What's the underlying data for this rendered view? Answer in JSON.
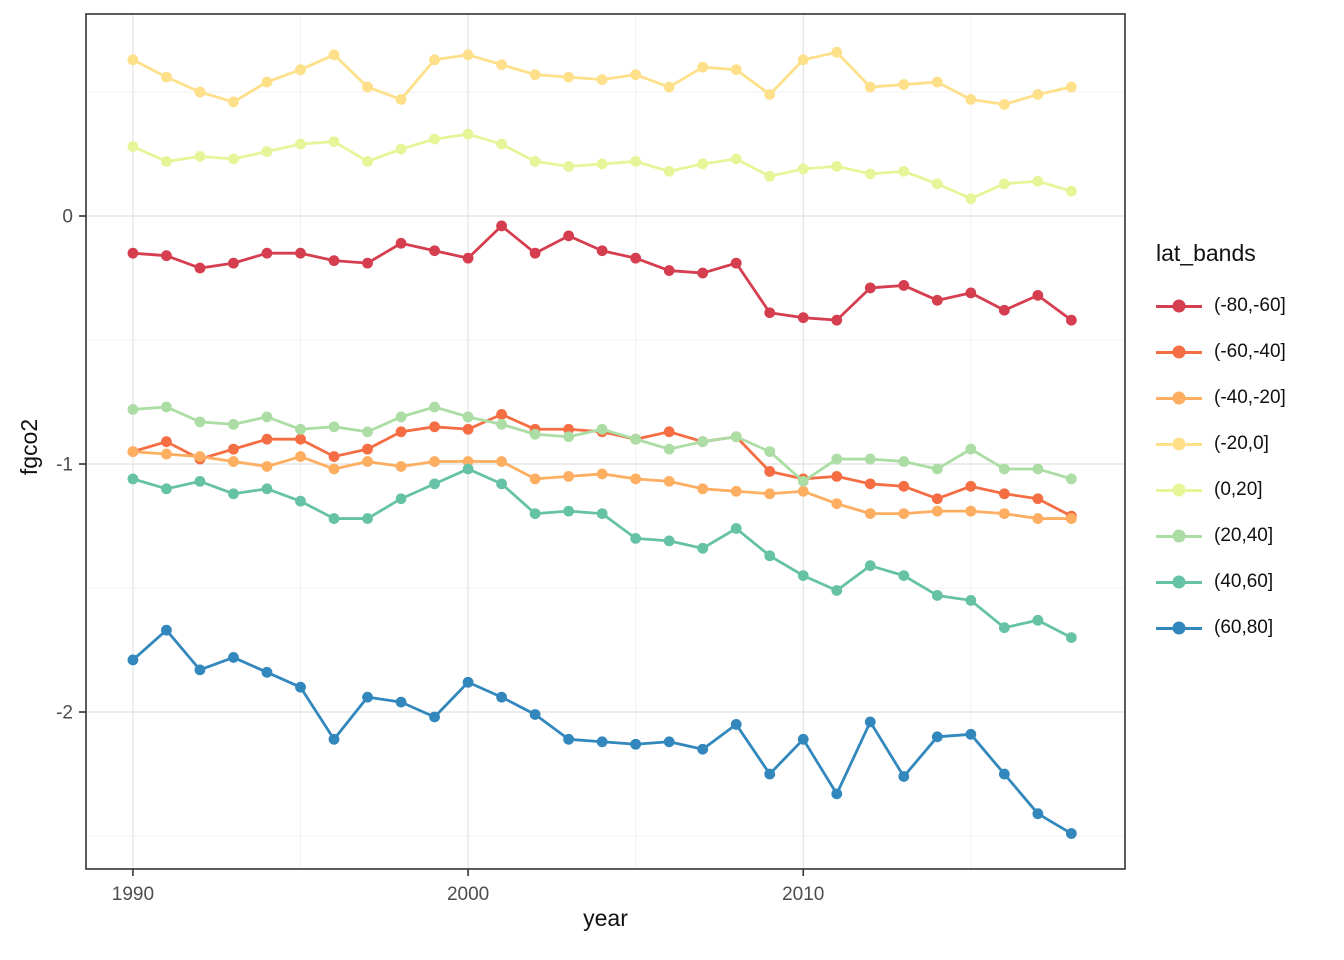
{
  "chart_data": {
    "type": "line",
    "title": "",
    "xlabel": "year",
    "ylabel": "fgco2",
    "legend_title": "lat_bands",
    "legend_position": "right",
    "grid": true,
    "point_markers": true,
    "x": [
      1990,
      1991,
      1992,
      1993,
      1994,
      1995,
      1996,
      1997,
      1998,
      1999,
      2000,
      2001,
      2002,
      2003,
      2004,
      2005,
      2006,
      2007,
      2008,
      2009,
      2010,
      2011,
      2012,
      2013,
      2014,
      2015,
      2016,
      2017,
      2018
    ],
    "xlim": [
      1988.6,
      2019.6
    ],
    "ylim": [
      -2.633,
      0.8145
    ],
    "x_major_ticks": [
      1990,
      2000,
      2010
    ],
    "x_minor_ticks": [
      1995,
      2005,
      2015
    ],
    "y_major_ticks": [
      0,
      -1,
      -2
    ],
    "y_minor_ticks": [
      0.5,
      -0.5,
      -1.5,
      -2.5
    ],
    "x_tick_labels": [
      "1990",
      "2000",
      "2010"
    ],
    "y_tick_labels": [
      "0",
      "-1",
      "-2"
    ],
    "series": [
      {
        "name": "(-80,-60]",
        "color": "#D53E4F",
        "values": [
          -0.15,
          -0.16,
          -0.21,
          -0.19,
          -0.15,
          -0.15,
          -0.18,
          -0.19,
          -0.11,
          -0.14,
          -0.17,
          -0.04,
          -0.15,
          -0.08,
          -0.14,
          -0.17,
          -0.22,
          -0.23,
          -0.19,
          -0.39,
          -0.41,
          -0.42,
          -0.29,
          -0.28,
          -0.34,
          -0.31,
          -0.38,
          -0.32,
          -0.42
        ]
      },
      {
        "name": "(-60,-40]",
        "color": "#F46D43",
        "values": [
          -0.95,
          -0.91,
          -0.98,
          -0.94,
          -0.9,
          -0.9,
          -0.97,
          -0.94,
          -0.87,
          -0.85,
          -0.86,
          -0.8,
          -0.86,
          -0.86,
          -0.87,
          -0.9,
          -0.87,
          -0.91,
          -0.89,
          -1.03,
          -1.06,
          -1.05,
          -1.08,
          -1.09,
          -1.14,
          -1.09,
          -1.12,
          -1.14,
          -1.21
        ]
      },
      {
        "name": "(-40,-20]",
        "color": "#FDAE61",
        "values": [
          -0.95,
          -0.96,
          -0.97,
          -0.99,
          -1.01,
          -0.97,
          -1.02,
          -0.99,
          -1.01,
          -0.99,
          -0.99,
          -0.99,
          -1.06,
          -1.05,
          -1.04,
          -1.06,
          -1.07,
          -1.1,
          -1.11,
          -1.12,
          -1.11,
          -1.16,
          -1.2,
          -1.2,
          -1.19,
          -1.19,
          -1.2,
          -1.22,
          -1.22
        ]
      },
      {
        "name": "(-20,0]",
        "color": "#FEE08B",
        "values": [
          0.63,
          0.56,
          0.5,
          0.46,
          0.54,
          0.59,
          0.65,
          0.52,
          0.47,
          0.63,
          0.65,
          0.61,
          0.57,
          0.56,
          0.55,
          0.57,
          0.52,
          0.6,
          0.59,
          0.49,
          0.63,
          0.66,
          0.52,
          0.53,
          0.54,
          0.47,
          0.45,
          0.49,
          0.52
        ]
      },
      {
        "name": "(0,20]",
        "color": "#E6F598",
        "values": [
          0.28,
          0.22,
          0.24,
          0.23,
          0.26,
          0.29,
          0.3,
          0.22,
          0.27,
          0.31,
          0.33,
          0.29,
          0.22,
          0.2,
          0.21,
          0.22,
          0.18,
          0.21,
          0.23,
          0.16,
          0.19,
          0.2,
          0.17,
          0.18,
          0.13,
          0.07,
          0.13,
          0.14,
          0.1
        ]
      },
      {
        "name": "(20,40]",
        "color": "#ABDDA4",
        "values": [
          -0.78,
          -0.77,
          -0.83,
          -0.84,
          -0.81,
          -0.86,
          -0.85,
          -0.87,
          -0.81,
          -0.77,
          -0.81,
          -0.84,
          -0.88,
          -0.89,
          -0.86,
          -0.9,
          -0.94,
          -0.91,
          -0.89,
          -0.95,
          -1.07,
          -0.98,
          -0.98,
          -0.99,
          -1.02,
          -0.94,
          -1.02,
          -1.02,
          -1.06
        ]
      },
      {
        "name": "(40,60]",
        "color": "#66C2A5",
        "values": [
          -1.06,
          -1.1,
          -1.07,
          -1.12,
          -1.1,
          -1.15,
          -1.22,
          -1.22,
          -1.14,
          -1.08,
          -1.02,
          -1.08,
          -1.2,
          -1.19,
          -1.2,
          -1.3,
          -1.31,
          -1.34,
          -1.26,
          -1.37,
          -1.45,
          -1.51,
          -1.41,
          -1.45,
          -1.53,
          -1.55,
          -1.66,
          -1.63,
          -1.7
        ]
      },
      {
        "name": "(60,80]",
        "color": "#3288BD",
        "values": [
          -1.79,
          -1.67,
          -1.83,
          -1.78,
          -1.84,
          -1.9,
          -2.11,
          -1.94,
          -1.96,
          -2.02,
          -1.88,
          -1.94,
          -2.01,
          -2.11,
          -2.12,
          -2.13,
          -2.12,
          -2.15,
          -2.05,
          -2.25,
          -2.11,
          -2.33,
          -2.04,
          -2.26,
          -2.1,
          -2.09,
          -2.25,
          -2.41,
          -2.49
        ]
      }
    ],
    "theme": {
      "panel_background": "#ffffff",
      "panel_border": "#333333",
      "grid_major": "#e6e6e6",
      "grid_minor": "#f2f2f2",
      "tick_color": "#333333",
      "tick_label_color": "#4d4d4d",
      "text_color": "#111111"
    }
  }
}
